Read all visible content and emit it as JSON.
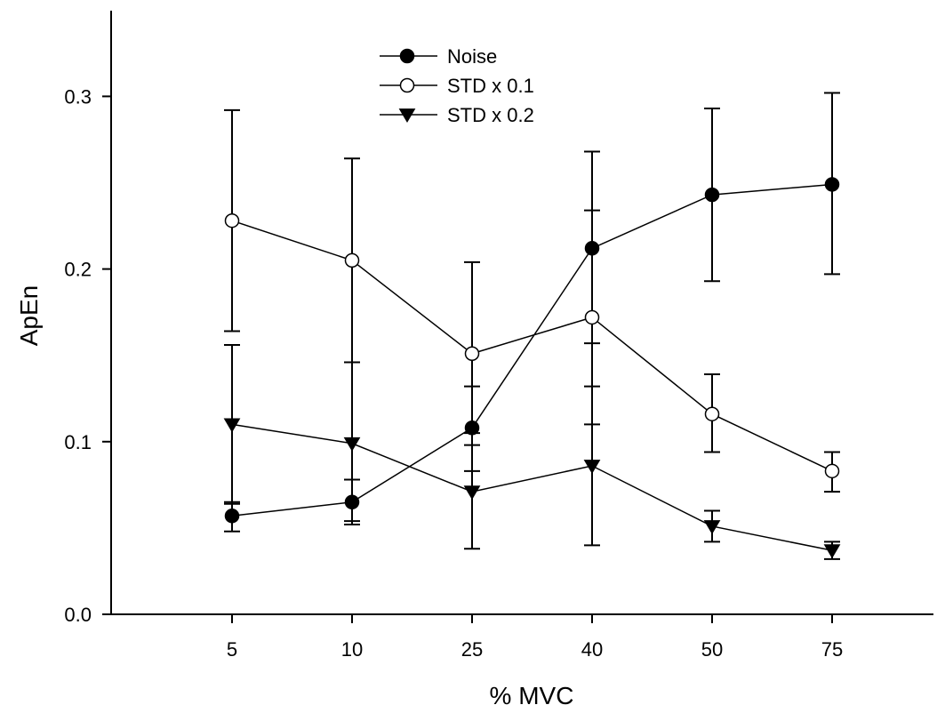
{
  "chart_data": {
    "type": "line",
    "xlabel": "% MVC",
    "ylabel": "ApEn",
    "categories": [
      "5",
      "10",
      "25",
      "40",
      "50",
      "75"
    ],
    "ylim": [
      0,
      0.35
    ],
    "yticks": [
      0.0,
      0.1,
      0.2,
      0.3
    ],
    "ytick_labels": [
      "0.0",
      "0.1",
      "0.2",
      "0.3"
    ],
    "grid": false,
    "legend_position": "top-center",
    "series": [
      {
        "name": "Noise",
        "marker": "filled-circle",
        "values": [
          0.057,
          0.065,
          0.108,
          0.212,
          0.243,
          0.249
        ],
        "err_low": [
          0.048,
          0.052,
          0.083,
          0.157,
          0.193,
          0.197
        ],
        "err_high": [
          0.065,
          0.078,
          0.132,
          0.268,
          0.293,
          0.302
        ]
      },
      {
        "name": "STD x 0.1",
        "marker": "open-circle",
        "values": [
          0.228,
          0.205,
          0.151,
          0.172,
          0.116,
          0.083
        ],
        "err_low": [
          0.164,
          0.146,
          0.098,
          0.11,
          0.094,
          0.071
        ],
        "err_high": [
          0.292,
          0.264,
          0.204,
          0.234,
          0.139,
          0.094
        ]
      },
      {
        "name": "STD x 0.2",
        "marker": "filled-triangle-down",
        "values": [
          0.11,
          0.099,
          0.071,
          0.086,
          0.051,
          0.037
        ],
        "err_low": [
          0.064,
          0.054,
          0.038,
          0.04,
          0.042,
          0.032
        ],
        "err_high": [
          0.156,
          0.146,
          0.105,
          0.132,
          0.06,
          0.042
        ]
      }
    ]
  }
}
